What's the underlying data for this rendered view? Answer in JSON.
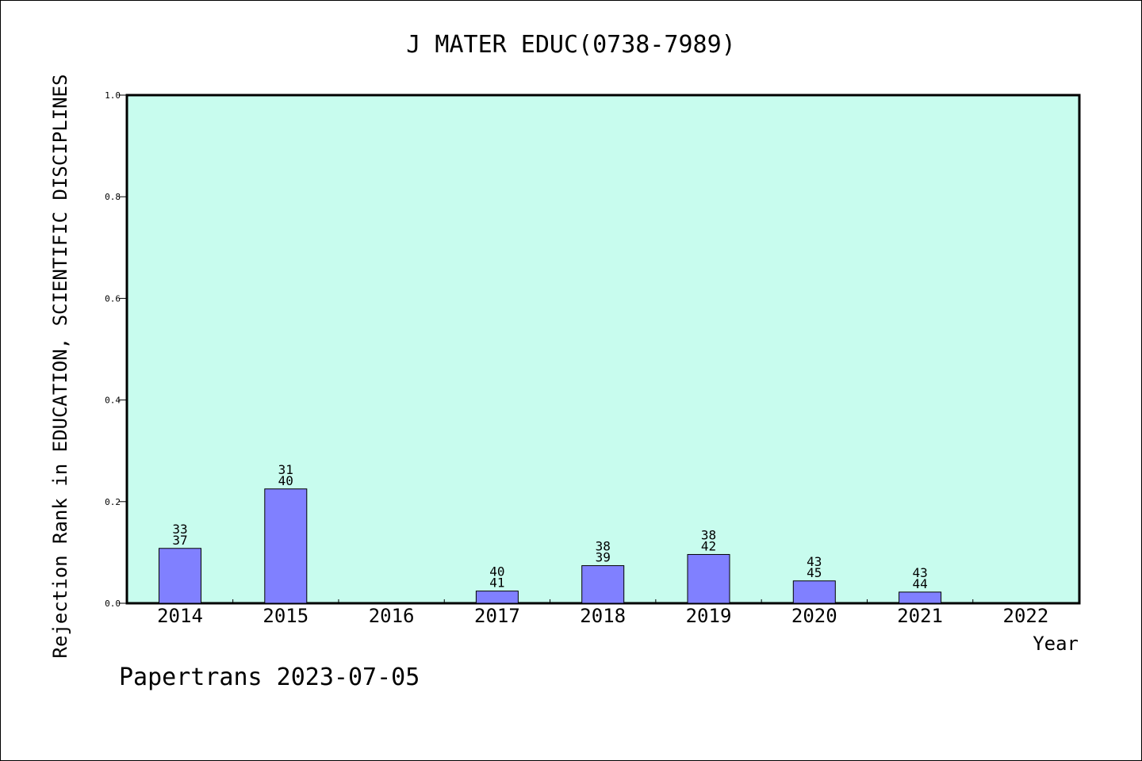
{
  "chart_data": {
    "type": "bar",
    "title": "J MATER EDUC(0738-7989)",
    "xlabel": "Year",
    "ylabel": "Rejection Rank in EDUCATION, SCIENTIFIC DISCIPLINES",
    "ylim": [
      0,
      1.0
    ],
    "yticks": [
      "0.0",
      "0.2",
      "0.4",
      "0.6",
      "0.8",
      "1.0"
    ],
    "categories": [
      "2014",
      "2015",
      "2016",
      "2017",
      "2018",
      "2019",
      "2020",
      "2021",
      "2022"
    ],
    "values": [
      0.108,
      0.225,
      null,
      0.024,
      0.074,
      0.096,
      0.044,
      0.022,
      null
    ],
    "labels_top": [
      "33",
      "31",
      "",
      "40",
      "38",
      "38",
      "43",
      "43",
      ""
    ],
    "labels_bottom": [
      "37",
      "40",
      "",
      "41",
      "39",
      "42",
      "45",
      "44",
      ""
    ],
    "grid": false,
    "colors": {
      "plot_bg": "#c8fcee",
      "bar": "#8080ff",
      "frame": "#000000"
    }
  },
  "footer": "Papertrans 2023-07-05"
}
